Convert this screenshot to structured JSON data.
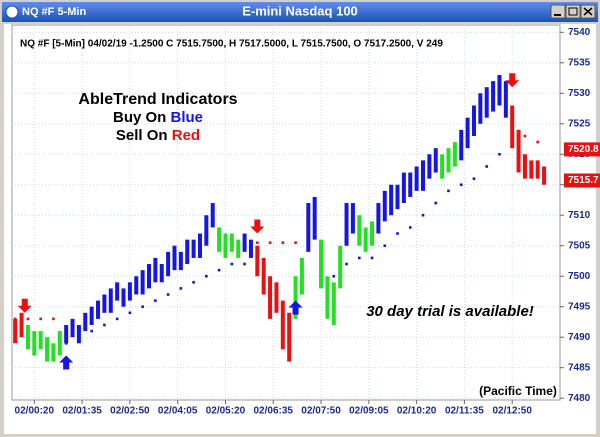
{
  "window_title": "NQ #F 5-Min",
  "chart_data": {
    "type": "ohlc",
    "title": "E-mini Nasdaq 100",
    "info": "NQ #F [5-Min] 04/02/19 -1.2500 C 7515.7500, H 7517.5000, L 7515.7500, O 7517.2500, V 249",
    "annotations": {
      "heading": "AbleTrend Indicators",
      "buy": "Buy On ",
      "buy_color_word": "Blue",
      "sell": "Sell On ",
      "sell_color_word": "Red",
      "trial": "30 day trial is available!",
      "time_zone": "(Pacific Time)"
    },
    "xlim": [
      -1,
      171
    ],
    "ylim": [
      7479.7,
      7541.2
    ],
    "grid": true,
    "yticks": [
      7480,
      7485,
      7490,
      7495,
      7500,
      7505,
      7510,
      7515,
      7520,
      7525,
      7530,
      7535,
      7540
    ],
    "xticks": [
      {
        "value": 6,
        "label": "02/00:20"
      },
      {
        "value": 21,
        "label": "02/01:35"
      },
      {
        "value": 36,
        "label": "02/02:50"
      },
      {
        "value": 51,
        "label": "02/04:05"
      },
      {
        "value": 66,
        "label": "02/05:20"
      },
      {
        "value": 81,
        "label": "02/06:35"
      },
      {
        "value": 96,
        "label": "02/07:50"
      },
      {
        "value": 111,
        "label": "02/09:05"
      },
      {
        "value": 126,
        "label": "02/10:20"
      },
      {
        "value": 141,
        "label": "02/11:35"
      },
      {
        "value": 156,
        "label": "02/12:50"
      }
    ],
    "series": [
      {
        "color": "#1515e8",
        "x": [
          16,
          18,
          20,
          22,
          24,
          26,
          28,
          30,
          32,
          34,
          36,
          38,
          40,
          42,
          44,
          46,
          48,
          50,
          52,
          54,
          56,
          58,
          60,
          62,
          72,
          74,
          92,
          94,
          104,
          106,
          114,
          116,
          118,
          120,
          122,
          124,
          126,
          128,
          130,
          132,
          140,
          142,
          144,
          146,
          148,
          150,
          152,
          154
        ],
        "low": [
          7489,
          7490,
          7489,
          7491,
          7492,
          7493,
          7494,
          7494,
          7496,
          7495,
          7496,
          7497,
          7497,
          7498,
          7499,
          7499,
          7500,
          7501,
          7501,
          7502,
          7503,
          7503,
          7505,
          7508,
          7504,
          7503,
          7504,
          7506,
          7505,
          7507,
          7507,
          7509,
          7510,
          7511,
          7512,
          7513,
          7514,
          7514,
          7516,
          7517,
          7519,
          7521,
          7523,
          7525,
          7526,
          7527,
          7528,
          7526
        ],
        "high": [
          7492,
          7493,
          7492,
          7494,
          7495,
          7496,
          7497,
          7498,
          7499,
          7498,
          7499,
          7500,
          7501,
          7502,
          7503,
          7502,
          7504,
          7505,
          7504,
          7506,
          7506,
          7507,
          7510,
          7512,
          7507,
          7506,
          7512,
          7513,
          7512,
          7512,
          7512,
          7514,
          7515,
          7515,
          7517,
          7517,
          7518,
          7519,
          7520,
          7521,
          7524,
          7526,
          7528,
          7530,
          7531,
          7532,
          7533,
          7532
        ]
      },
      {
        "color": "#22e022",
        "x": [
          4,
          6,
          8,
          10,
          12,
          14,
          64,
          66,
          68,
          70,
          88,
          90,
          96,
          98,
          100,
          102,
          108,
          110,
          112,
          134,
          136,
          138
        ],
        "low": [
          7488,
          7487,
          7488,
          7486,
          7486,
          7487,
          7504,
          7503,
          7504,
          7503,
          7493,
          7497,
          7498,
          7493,
          7492,
          7498,
          7505,
          7504,
          7505,
          7516,
          7517,
          7518
        ],
        "high": [
          7492,
          7491,
          7491,
          7490,
          7489,
          7491,
          7508,
          7507,
          7507,
          7506,
          7500,
          7503,
          7506,
          7500,
          7499,
          7505,
          7510,
          7508,
          7509,
          7520,
          7521,
          7522
        ]
      },
      {
        "color": "#e81010",
        "x": [
          0,
          2,
          76,
          78,
          80,
          82,
          84,
          86,
          156,
          158,
          160,
          162,
          164,
          166
        ],
        "low": [
          7489,
          7490,
          7500,
          7497,
          7493,
          7494,
          7488,
          7486,
          7521,
          7517,
          7516,
          7516,
          7516,
          7515
        ],
        "high": [
          7493,
          7494,
          7505,
          7503,
          7500,
          7499,
          7496,
          7494,
          7528,
          7524,
          7520,
          7519,
          7519,
          7518
        ]
      }
    ],
    "stops": [
      {
        "color": "#1515c8",
        "x": [
          16,
          20,
          24,
          28,
          32,
          36,
          40,
          44,
          48,
          52,
          56,
          60,
          64,
          68,
          72,
          96,
          100,
          104,
          108,
          112,
          116,
          120,
          124,
          128,
          132,
          136,
          140,
          144,
          148,
          152
        ],
        "values": [
          7489,
          7490,
          7491,
          7492,
          7493,
          7494,
          7495,
          7496,
          7497,
          7498,
          7499,
          7500,
          7501,
          7502,
          7502,
          7500,
          7500,
          7502,
          7503,
          7503,
          7505,
          7507,
          7508,
          7510,
          7512,
          7514,
          7515,
          7516,
          7518,
          7520
        ]
      },
      {
        "color": "#e81010",
        "x": [
          0,
          4,
          8,
          12,
          76,
          80,
          84,
          88,
          92,
          156,
          160,
          164
        ],
        "values": [
          7493,
          7493,
          7493,
          7493,
          7505.5,
          7505.5,
          7505.5,
          7505.5,
          7505.5,
          7525,
          7523,
          7522
        ]
      }
    ],
    "signals": [
      {
        "kind": "sell",
        "color": "#e81010",
        "x": [
          3,
          76,
          156
        ],
        "values": [
          7494,
          7507,
          7531
        ]
      },
      {
        "kind": "buy",
        "color": "#1515e8",
        "x": [
          16,
          88
        ],
        "values": [
          7487,
          7496
        ]
      }
    ],
    "price_labels": [
      7520.8,
      7515.7
    ]
  }
}
